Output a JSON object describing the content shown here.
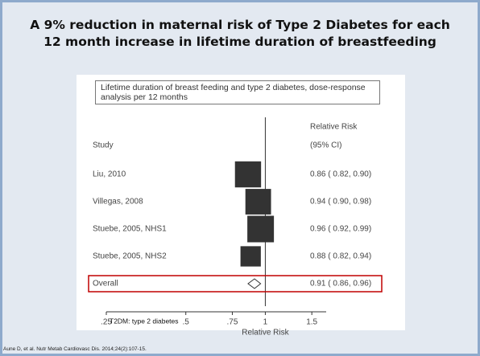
{
  "title": "A 9% reduction in maternal risk of Type 2 Diabetes for each 12 month increase in lifetime duration of breastfeeding",
  "citation": "Aune D, et al. Nutr Metab Cardiovasc Dis. 2014;24(2):107-15.",
  "chart_data": {
    "type": "forest",
    "title": "Lifetime duration of breast feeding and type 2 diabetes, dose-response analysis per 12 months",
    "study_header": "Study",
    "effect_header": "Relative Risk",
    "ci_header": "(95% CI)",
    "categories": [
      "Liu, 2010",
      "Villegas, 2008",
      "Stuebe, 2005, NHS1",
      "Stuebe, 2005, NHS2"
    ],
    "values": [
      0.86,
      0.94,
      0.96,
      0.88
    ],
    "lower": [
      0.82,
      0.9,
      0.92,
      0.82
    ],
    "upper": [
      0.9,
      0.98,
      0.99,
      0.94
    ],
    "weights": [
      28,
      27,
      29,
      17
    ],
    "value_labels": [
      "0.86 ( 0.82, 0.90)",
      "0.94 ( 0.90, 0.98)",
      "0.96 ( 0.92, 0.99)",
      "0.88 ( 0.82, 0.94)"
    ],
    "overall": {
      "name": "Overall",
      "value": 0.91,
      "lower": 0.86,
      "upper": 0.96,
      "value_label": "0.91 ( 0.86, 0.96)"
    },
    "reference": 1,
    "xlabel": "Relative Risk",
    "xscale": "log",
    "xlim": [
      0.25,
      1.7
    ],
    "xticks": [
      {
        "value": 0.25,
        "label": ".25"
      },
      {
        "value": 0.5,
        "label": ".5"
      },
      {
        "value": 0.75,
        "label": ".75"
      },
      1,
      1.5
    ],
    "note": "T2DM: type 2 diabetes",
    "color": "#333333",
    "highlight_color": "#c00000"
  }
}
